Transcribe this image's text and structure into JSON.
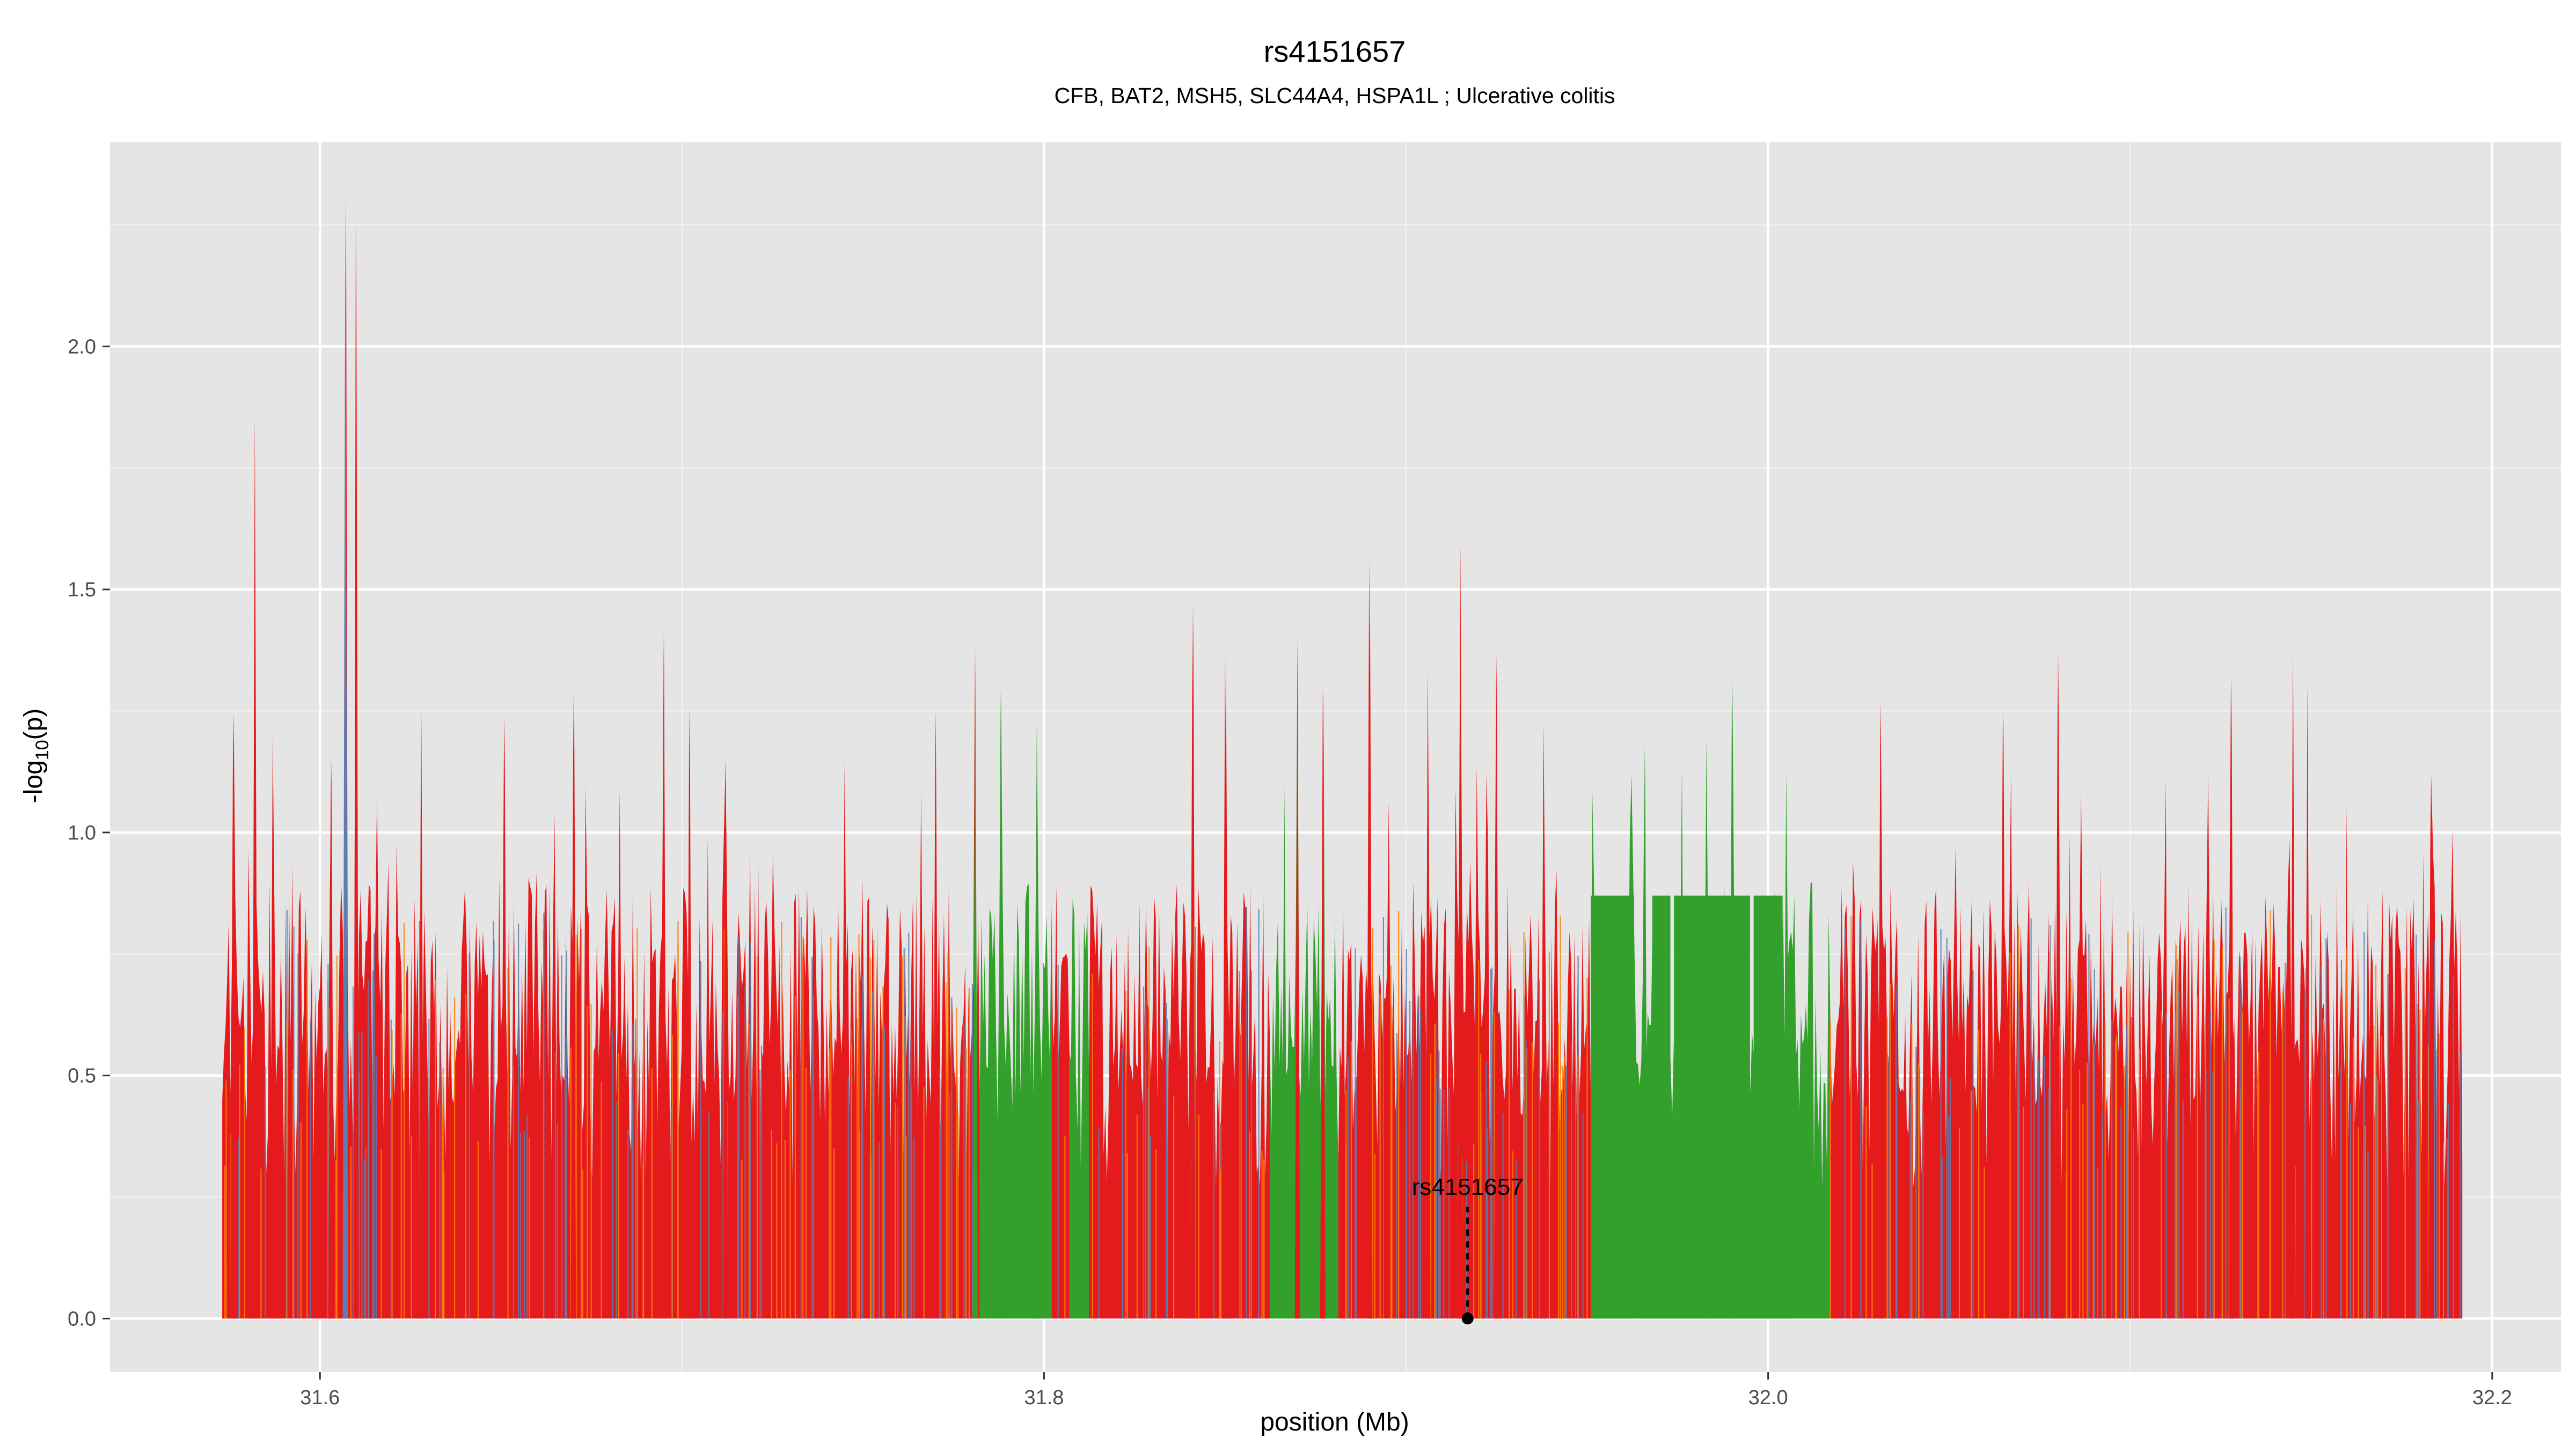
{
  "chart_data": {
    "type": "area",
    "title": "rs4151657",
    "subtitle": "CFB, BAT2, MSH5, SLC44A4, HSPA1L ; Ulcerative colitis",
    "xlabel": "position (Mb)",
    "ylabel_main": "-log",
    "ylabel_sub": "10",
    "ylabel_tail": "(p)",
    "xlim": [
      31.542,
      32.219
    ],
    "ylim": [
      -0.11,
      2.42
    ],
    "x_ticks": [
      31.6,
      31.8,
      32.0,
      32.2
    ],
    "x_tick_labels": [
      "31.6",
      "31.8",
      "32.0",
      "32.2"
    ],
    "y_ticks": [
      0.0,
      0.5,
      1.0,
      1.5,
      2.0
    ],
    "y_tick_labels": [
      "0.0",
      "0.5",
      "1.0",
      "1.5",
      "2.0"
    ],
    "grid": true,
    "data_range": [
      31.573,
      32.192
    ],
    "colors": {
      "main": "#e41a1c",
      "orange": "#ff7f00",
      "green": "#33a02c",
      "blue": "#5b7fb2",
      "panel": "#e5e5e5",
      "grid": "#ffffff",
      "label": "#000000",
      "tick_label": "#4d4d4d"
    },
    "green_regions": [
      {
        "x0": 31.782,
        "x1": 31.802
      },
      {
        "x0": 31.807,
        "x1": 31.812
      },
      {
        "x0": 31.862,
        "x1": 31.881
      },
      {
        "x0": 31.951,
        "x1": 32.017
      }
    ],
    "green_blocks": [
      {
        "x0": 31.951,
        "x1": 31.963,
        "y": 0.87
      },
      {
        "x0": 31.968,
        "x1": 31.973,
        "y": 0.87
      },
      {
        "x0": 31.974,
        "x1": 31.995,
        "y": 0.87
      },
      {
        "x0": 31.996,
        "x1": 32.004,
        "y": 0.87
      }
    ],
    "peaks": [
      {
        "x": 31.582,
        "y": 1.85,
        "color": "red"
      },
      {
        "x": 31.607,
        "y": 2.31,
        "color": "blue"
      },
      {
        "x": 31.61,
        "y": 2.27,
        "color": "red"
      },
      {
        "x": 31.587,
        "y": 1.2,
        "color": "red"
      },
      {
        "x": 31.576,
        "y": 1.25,
        "color": "red"
      },
      {
        "x": 31.603,
        "y": 1.15,
        "color": "red"
      },
      {
        "x": 31.628,
        "y": 1.25,
        "color": "red"
      },
      {
        "x": 31.651,
        "y": 1.24,
        "color": "red"
      },
      {
        "x": 31.67,
        "y": 1.29,
        "color": "red"
      },
      {
        "x": 31.695,
        "y": 1.41,
        "color": "red"
      },
      {
        "x": 31.702,
        "y": 1.26,
        "color": "red"
      },
      {
        "x": 31.712,
        "y": 1.15,
        "color": "red"
      },
      {
        "x": 31.77,
        "y": 1.25,
        "color": "red"
      },
      {
        "x": 31.781,
        "y": 1.38,
        "color": "green"
      },
      {
        "x": 31.788,
        "y": 1.3,
        "color": "green"
      },
      {
        "x": 31.798,
        "y": 1.22,
        "color": "green"
      },
      {
        "x": 31.841,
        "y": 1.47,
        "color": "red"
      },
      {
        "x": 31.85,
        "y": 1.38,
        "color": "red"
      },
      {
        "x": 31.87,
        "y": 1.4,
        "color": "red"
      },
      {
        "x": 31.877,
        "y": 1.3,
        "color": "red"
      },
      {
        "x": 31.89,
        "y": 1.56,
        "color": "red"
      },
      {
        "x": 31.915,
        "y": 1.59,
        "color": "red"
      },
      {
        "x": 31.906,
        "y": 1.33,
        "color": "red"
      },
      {
        "x": 31.925,
        "y": 1.37,
        "color": "red"
      },
      {
        "x": 31.938,
        "y": 1.22,
        "color": "red"
      },
      {
        "x": 31.966,
        "y": 1.18,
        "color": "green"
      },
      {
        "x": 31.983,
        "y": 1.19,
        "color": "green"
      },
      {
        "x": 31.99,
        "y": 1.31,
        "color": "green"
      },
      {
        "x": 32.005,
        "y": 1.12,
        "color": "green"
      },
      {
        "x": 32.031,
        "y": 1.27,
        "color": "red"
      },
      {
        "x": 32.065,
        "y": 1.25,
        "color": "red"
      },
      {
        "x": 32.08,
        "y": 1.37,
        "color": "red"
      },
      {
        "x": 32.128,
        "y": 1.32,
        "color": "red"
      },
      {
        "x": 32.145,
        "y": 1.37,
        "color": "red"
      },
      {
        "x": 32.149,
        "y": 1.3,
        "color": "red"
      },
      {
        "x": 32.183,
        "y": 1.12,
        "color": "red"
      }
    ],
    "annotation": {
      "label": "rs4151657",
      "x": 31.917,
      "y_point": 0.0,
      "y_top": 0.23
    }
  }
}
